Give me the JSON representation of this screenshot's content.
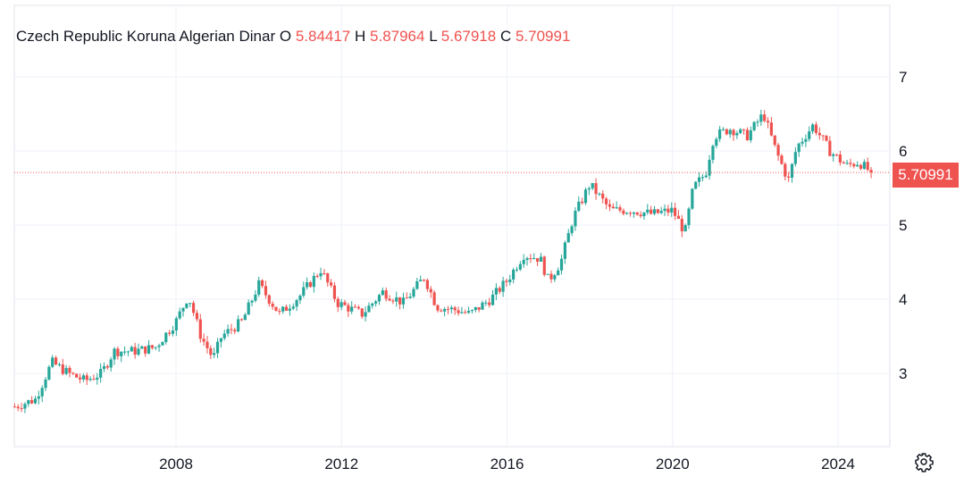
{
  "legend": {
    "symbol": "Czech Republic Koruna Algerian Dinar",
    "o_label": "O",
    "o_value": "5.84417",
    "h_label": "H",
    "h_value": "5.87964",
    "l_label": "L",
    "l_value": "5.67918",
    "c_label": "C",
    "c_value": "5.70991"
  },
  "last_price_label": "5.70991",
  "colors": {
    "up": "#26a69a",
    "down": "#ef5350",
    "grid": "#f0f3fa",
    "text": "#131722"
  },
  "icons": {
    "settings": "gear-icon"
  },
  "chart_data": {
    "type": "candlestick",
    "title": "Czech Republic Koruna Algerian Dinar",
    "x_range": [
      2004.1,
      2024.8
    ],
    "ylim": [
      2.0,
      7.7
    ],
    "x_ticks": [
      "2008",
      "2012",
      "2016",
      "2020",
      "2024"
    ],
    "y_ticks": [
      "3",
      "4",
      "5",
      "6",
      "7"
    ],
    "last_close": 5.70991,
    "grid": true,
    "trend_anchors": [
      [
        2004.1,
        2.55
      ],
      [
        2004.6,
        2.65
      ],
      [
        2005.0,
        3.15
      ],
      [
        2005.4,
        3.0
      ],
      [
        2005.8,
        2.9
      ],
      [
        2006.2,
        3.0
      ],
      [
        2006.5,
        3.3
      ],
      [
        2007.0,
        3.3
      ],
      [
        2007.5,
        3.35
      ],
      [
        2008.0,
        3.7
      ],
      [
        2008.3,
        4.05
      ],
      [
        2008.6,
        3.5
      ],
      [
        2008.9,
        3.2
      ],
      [
        2009.1,
        3.5
      ],
      [
        2009.6,
        3.7
      ],
      [
        2010.0,
        4.2
      ],
      [
        2010.5,
        3.8
      ],
      [
        2011.0,
        4.05
      ],
      [
        2011.5,
        4.4
      ],
      [
        2011.9,
        3.95
      ],
      [
        2012.5,
        3.8
      ],
      [
        2013.0,
        4.1
      ],
      [
        2013.5,
        3.95
      ],
      [
        2014.0,
        4.3
      ],
      [
        2014.3,
        3.9
      ],
      [
        2014.8,
        3.85
      ],
      [
        2015.1,
        3.8
      ],
      [
        2015.6,
        4.0
      ],
      [
        2016.0,
        4.25
      ],
      [
        2016.4,
        4.6
      ],
      [
        2016.8,
        4.55
      ],
      [
        2017.0,
        4.25
      ],
      [
        2017.3,
        4.5
      ],
      [
        2017.6,
        5.1
      ],
      [
        2018.0,
        5.55
      ],
      [
        2018.5,
        5.2
      ],
      [
        2019.0,
        5.2
      ],
      [
        2019.5,
        5.15
      ],
      [
        2020.0,
        5.2
      ],
      [
        2020.3,
        4.9
      ],
      [
        2020.5,
        5.5
      ],
      [
        2020.8,
        5.7
      ],
      [
        2021.0,
        6.2
      ],
      [
        2021.4,
        6.3
      ],
      [
        2021.8,
        6.2
      ],
      [
        2022.2,
        6.5
      ],
      [
        2022.5,
        6.0
      ],
      [
        2022.8,
        5.6
      ],
      [
        2023.0,
        6.05
      ],
      [
        2023.4,
        6.35
      ],
      [
        2023.8,
        6.0
      ],
      [
        2024.2,
        5.8
      ],
      [
        2024.5,
        5.85
      ],
      [
        2024.8,
        5.71
      ]
    ]
  }
}
